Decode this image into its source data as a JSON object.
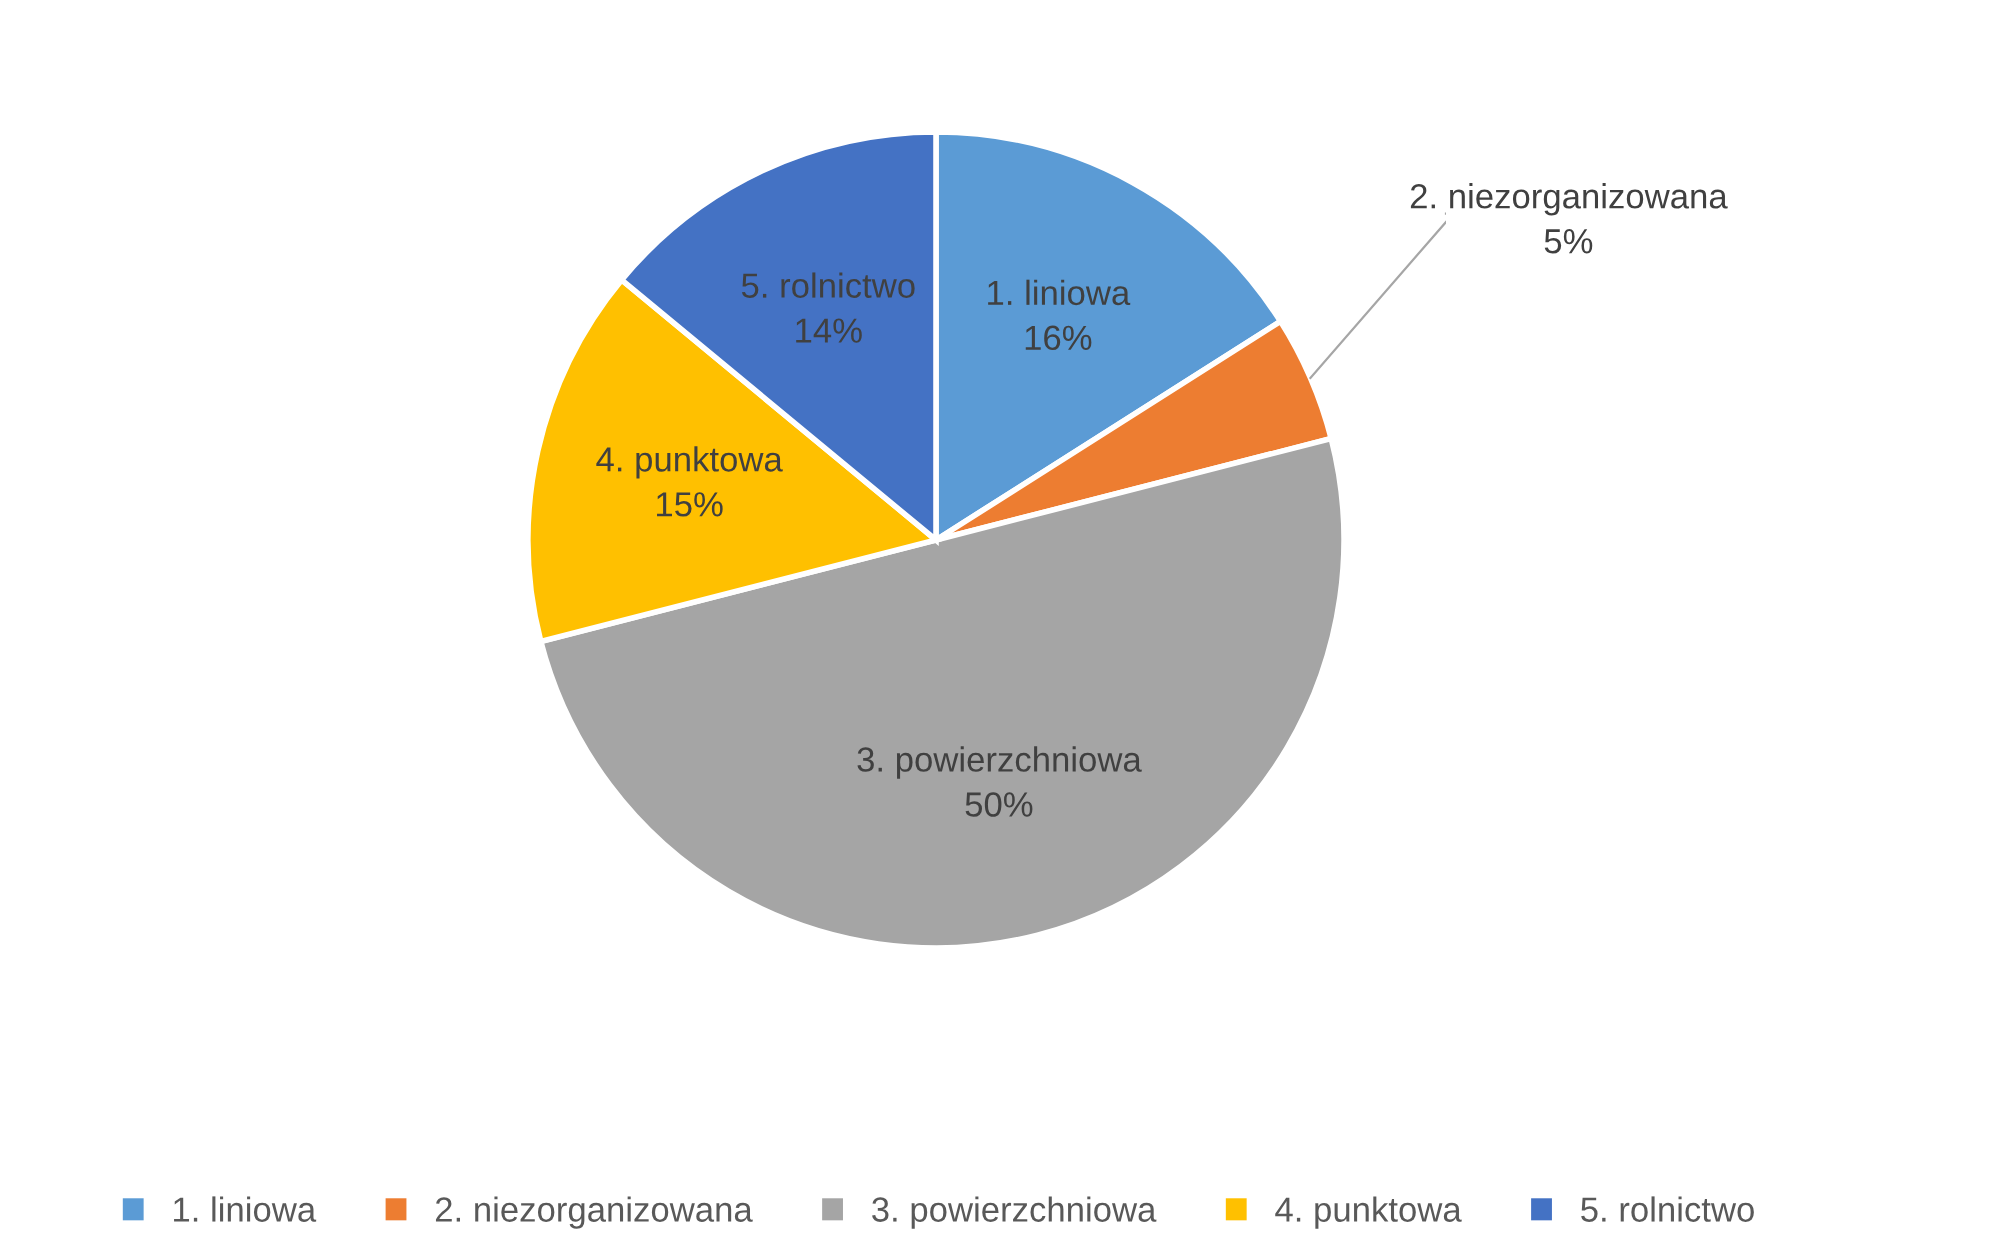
{
  "chart_data": {
    "type": "pie",
    "categories": [
      "1. liniowa",
      "2. niezorganizowana",
      "3. powierzchniowa",
      "4. punktowa",
      "5. rolnictwo"
    ],
    "values": [
      16,
      5,
      50,
      15,
      14
    ],
    "value_labels": [
      "16%",
      "5%",
      "50%",
      "15%",
      "14%"
    ],
    "colors": [
      "#5b9bd5",
      "#ed7d31",
      "#a5a5a5",
      "#ffc000",
      "#4472c4"
    ],
    "legend": "bottom"
  }
}
